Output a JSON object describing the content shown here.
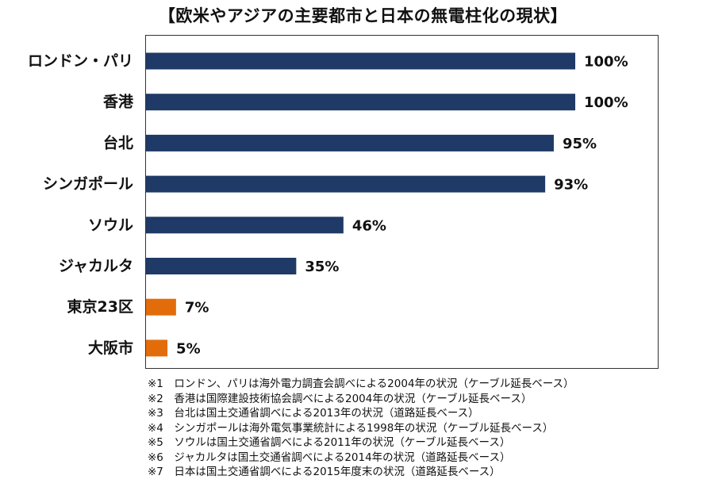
{
  "title": "【欧米やアジアの主要都市と日本の無電柱化の現状】",
  "chart_data": {
    "type": "bar",
    "orientation": "horizontal",
    "title": "【欧米やアジアの主要都市と日本の無電柱化の現状】",
    "categories": [
      "ロンドン・パリ",
      "香港",
      "台北",
      "シンガポール",
      "ソウル",
      "ジャカルタ",
      "東京23区",
      "大阪市"
    ],
    "values": [
      100,
      100,
      95,
      93,
      46,
      35,
      7,
      5
    ],
    "value_labels": [
      "100%",
      "100%",
      "95%",
      "93%",
      "46%",
      "35%",
      "7%",
      "5%"
    ],
    "bar_colors": [
      "#1f3a66",
      "#1f3a66",
      "#1f3a66",
      "#1f3a66",
      "#1f3a66",
      "#1f3a66",
      "#e36c0a",
      "#e36c0a"
    ],
    "xlim": [
      0,
      100
    ],
    "xlabel": "",
    "ylabel": "",
    "grid": false,
    "legend": "none"
  },
  "notes": [
    "※1　ロンドン、パリは海外電力調査会調べによる2004年の状況（ケーブル延長ベース）",
    "※2　香港は国際建設技術協会調べによる2004年の状況（ケーブル延長ベース）",
    "※3　台北は国土交通省調べによる2013年の状況（道路延長ベース）",
    "※4　シンガポールは海外電気事業統計による1998年の状況（ケーブル延長ベース）",
    "※5　ソウルは国土交通省調べによる2011年の状況（ケーブル延長ベース）",
    "※6　ジャカルタは国土交通省調べによる2014年の状況（道路延長ベース）",
    "※7　日本は国土交通省調べによる2015年度末の状況（道路延長ベース）"
  ]
}
